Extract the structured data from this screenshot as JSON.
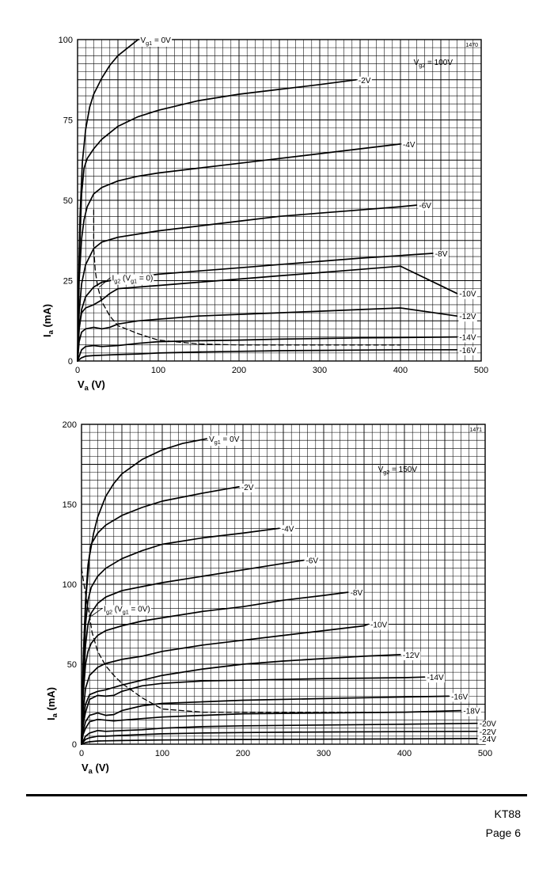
{
  "chart_data": [
    {
      "type": "line",
      "reference": "1470",
      "condition": "V_g2 = 100V",
      "xlabel": "V_a (V)",
      "ylabel": "I_a (mA)",
      "xlim": [
        0,
        500
      ],
      "ylim": [
        0,
        100
      ],
      "xticks": [
        0,
        100,
        200,
        300,
        400,
        500
      ],
      "yticks": [
        0,
        25,
        50,
        75,
        100
      ],
      "grid": true,
      "series": [
        {
          "name": "V_g1 = 0V",
          "x": [
            0,
            1,
            3,
            6,
            10,
            15,
            20,
            30,
            40,
            50,
            60,
            70,
            75
          ],
          "y": [
            0,
            20,
            45,
            62,
            72,
            79,
            83,
            88,
            92,
            95,
            97,
            99,
            100
          ]
        },
        {
          "name": "-2V",
          "x": [
            0,
            2,
            5,
            8,
            12,
            20,
            30,
            50,
            75,
            100,
            150,
            200,
            250,
            300,
            345
          ],
          "y": [
            0,
            30,
            52,
            60,
            63,
            66,
            69,
            73,
            76,
            78,
            81,
            83,
            84.5,
            86,
            87.5
          ]
        },
        {
          "name": "-4V",
          "x": [
            0,
            2,
            5,
            8,
            12,
            20,
            30,
            50,
            75,
            100,
            150,
            200,
            250,
            300,
            350,
            400
          ],
          "y": [
            0,
            25,
            38,
            44,
            48,
            52,
            54,
            56,
            57.5,
            58.5,
            60,
            61.5,
            63,
            64.5,
            66,
            67.5
          ]
        },
        {
          "name": "-6V",
          "x": [
            0,
            2,
            5,
            10,
            20,
            30,
            50,
            75,
            100,
            150,
            200,
            250,
            300,
            350,
            400,
            420
          ],
          "y": [
            0,
            15,
            24,
            30,
            35,
            37,
            38.5,
            39.5,
            40.5,
            42,
            43.5,
            45,
            46,
            47,
            48,
            48.5
          ]
        },
        {
          "name": "-8V",
          "x": [
            0,
            2,
            5,
            10,
            20,
            30,
            50,
            75,
            100,
            150,
            200,
            250,
            300,
            350,
            400,
            440
          ],
          "y": [
            0,
            10,
            16,
            20,
            23,
            24.5,
            25.5,
            26.2,
            27,
            28,
            29,
            30,
            31,
            32,
            32.8,
            33.5
          ]
        },
        {
          "name": "-10V",
          "x": [
            0,
            2,
            5,
            10,
            20,
            30,
            40,
            50,
            75,
            100,
            150,
            200,
            250,
            300,
            350,
            400,
            470
          ],
          "y": [
            0,
            10,
            15,
            16.5,
            17.5,
            19,
            21,
            22.5,
            23,
            23.5,
            24.5,
            25.5,
            26.5,
            27.5,
            28.5,
            29.5,
            21
          ]
        },
        {
          "name": "-12V",
          "x": [
            0,
            2,
            5,
            10,
            20,
            30,
            40,
            50,
            75,
            100,
            150,
            200,
            250,
            300,
            350,
            400,
            470
          ],
          "y": [
            0,
            6,
            9,
            10,
            10.5,
            10,
            10.5,
            11.5,
            12.5,
            13,
            14,
            14.5,
            15,
            15.5,
            16,
            16.5,
            14
          ]
        },
        {
          "name": "-14V",
          "x": [
            0,
            5,
            10,
            20,
            30,
            50,
            75,
            100,
            150,
            200,
            250,
            300,
            350,
            400,
            470
          ],
          "y": [
            0,
            3.5,
            4.5,
            4.8,
            4.5,
            4.8,
            5.5,
            6,
            6.3,
            6.5,
            6.8,
            7,
            7.2,
            7.3,
            7.5
          ]
        },
        {
          "name": "-16V",
          "x": [
            0,
            5,
            10,
            20,
            30,
            50,
            75,
            100,
            150,
            200,
            250,
            300,
            350,
            400,
            470
          ],
          "y": [
            0,
            1,
            1.5,
            1.7,
            1.8,
            2,
            2.2,
            2.5,
            2.8,
            3,
            3.2,
            3.3,
            3.4,
            3.5,
            3.5
          ]
        },
        {
          "name": "I_g2 (V_g1 = 0)",
          "style": "dashed",
          "x": [
            20,
            20,
            22,
            25,
            30,
            40,
            50,
            75,
            100,
            150,
            200,
            300,
            400
          ],
          "y": [
            47,
            35,
            28,
            23,
            18.5,
            14,
            11,
            8.5,
            6.5,
            5.3,
            5,
            5,
            5
          ]
        }
      ]
    },
    {
      "type": "line",
      "reference": "1471",
      "condition": "V_g2 = 150V",
      "xlabel": "V_a (V)",
      "ylabel": "I_a (mA)",
      "xlim": [
        0,
        500
      ],
      "ylim": [
        0,
        200
      ],
      "xticks": [
        0,
        100,
        200,
        300,
        400,
        500
      ],
      "yticks": [
        0,
        50,
        100,
        150,
        200
      ],
      "grid": true,
      "series": [
        {
          "name": "V_g1 = 0V",
          "x": [
            0,
            1,
            3,
            6,
            10,
            15,
            20,
            30,
            40,
            50,
            75,
            100,
            125,
            155
          ],
          "y": [
            0,
            30,
            65,
            95,
            118,
            132,
            142,
            155,
            163,
            169,
            178,
            184,
            188,
            191
          ]
        },
        {
          "name": "-2V",
          "x": [
            0,
            2,
            5,
            8,
            12,
            20,
            30,
            50,
            75,
            100,
            150,
            195
          ],
          "y": [
            0,
            50,
            90,
            112,
            125,
            132,
            137,
            143,
            148,
            152,
            157,
            161
          ]
        },
        {
          "name": "-4V",
          "x": [
            0,
            2,
            5,
            8,
            12,
            20,
            30,
            50,
            75,
            100,
            150,
            200,
            245
          ],
          "y": [
            0,
            40,
            75,
            90,
            98,
            105,
            110,
            116,
            121,
            125,
            129,
            132,
            135
          ]
        },
        {
          "name": "-6V",
          "x": [
            0,
            2,
            5,
            8,
            12,
            20,
            30,
            50,
            75,
            100,
            150,
            200,
            250,
            275
          ],
          "y": [
            0,
            35,
            62,
            75,
            82,
            88,
            92,
            96,
            98.5,
            101,
            105,
            109,
            113,
            115
          ]
        },
        {
          "name": "-8V",
          "x": [
            0,
            2,
            5,
            8,
            12,
            20,
            30,
            50,
            75,
            100,
            150,
            200,
            250,
            300,
            330
          ],
          "y": [
            0,
            30,
            50,
            58,
            63,
            68,
            71,
            74,
            77,
            79,
            83,
            86,
            90,
            93,
            95
          ]
        },
        {
          "name": "-10V",
          "x": [
            0,
            2,
            5,
            10,
            20,
            30,
            50,
            75,
            100,
            150,
            200,
            250,
            300,
            350,
            355
          ],
          "y": [
            0,
            20,
            35,
            43,
            48,
            50.5,
            53,
            55,
            58,
            62,
            65,
            68,
            71,
            74,
            75
          ]
        },
        {
          "name": "-12V",
          "x": [
            0,
            2,
            5,
            10,
            20,
            30,
            50,
            75,
            100,
            150,
            200,
            250,
            300,
            350,
            395
          ],
          "y": [
            0,
            15,
            25,
            31,
            33,
            34,
            37,
            40,
            43,
            47,
            50,
            52,
            53.5,
            55,
            56
          ]
        },
        {
          "name": "-14V",
          "x": [
            0,
            2,
            5,
            10,
            20,
            30,
            40,
            50,
            75,
            100,
            150,
            200,
            250,
            300,
            350,
            400,
            425
          ],
          "y": [
            0,
            12,
            20,
            28,
            30.5,
            30,
            30.5,
            33,
            36.5,
            38,
            39.5,
            40,
            40.5,
            41,
            41.3,
            41.6,
            42
          ]
        },
        {
          "name": "-16V",
          "x": [
            0,
            2,
            5,
            10,
            20,
            30,
            40,
            50,
            75,
            100,
            150,
            200,
            300,
            400,
            455
          ],
          "y": [
            0,
            8,
            14,
            18,
            19.5,
            18,
            18.5,
            21,
            24,
            25.5,
            26.5,
            27.5,
            28.5,
            29.5,
            30
          ]
        },
        {
          "name": "-18V",
          "x": [
            0,
            2,
            5,
            10,
            20,
            30,
            40,
            50,
            75,
            100,
            150,
            200,
            300,
            400,
            470
          ],
          "y": [
            0,
            6,
            10,
            14,
            15.5,
            15,
            14.5,
            15,
            16,
            17,
            18,
            19,
            19.5,
            20,
            21
          ]
        },
        {
          "name": "-20V",
          "x": [
            0,
            5,
            10,
            20,
            30,
            50,
            75,
            100,
            150,
            200,
            300,
            400,
            490
          ],
          "y": [
            0,
            5,
            7,
            8.5,
            8,
            8.5,
            9,
            10,
            11,
            11.5,
            12,
            12.5,
            13
          ]
        },
        {
          "name": "-22V",
          "x": [
            0,
            5,
            10,
            20,
            30,
            50,
            75,
            100,
            150,
            200,
            300,
            400,
            490
          ],
          "y": [
            0,
            3,
            4,
            5,
            5,
            5.5,
            6,
            6.5,
            7,
            7.3,
            7.6,
            7.8,
            8
          ]
        },
        {
          "name": "-24V",
          "x": [
            0,
            5,
            10,
            20,
            50,
            100,
            200,
            300,
            400,
            490
          ],
          "y": [
            0,
            1,
            1.5,
            2,
            2.3,
            2.6,
            2.9,
            3.1,
            3.3,
            3.5
          ]
        },
        {
          "name": "I_g2 (V_g1 = 0V)",
          "style": "dashed",
          "x": [
            0,
            3,
            7,
            10,
            13,
            20,
            30,
            40,
            50,
            75,
            100,
            150,
            200,
            300,
            370
          ],
          "y": [
            110,
            100,
            88,
            80,
            70,
            58,
            49,
            43,
            38,
            29,
            22,
            20,
            20,
            20,
            20
          ]
        }
      ]
    }
  ],
  "footer": {
    "model": "KT88",
    "page": "Page 6"
  }
}
